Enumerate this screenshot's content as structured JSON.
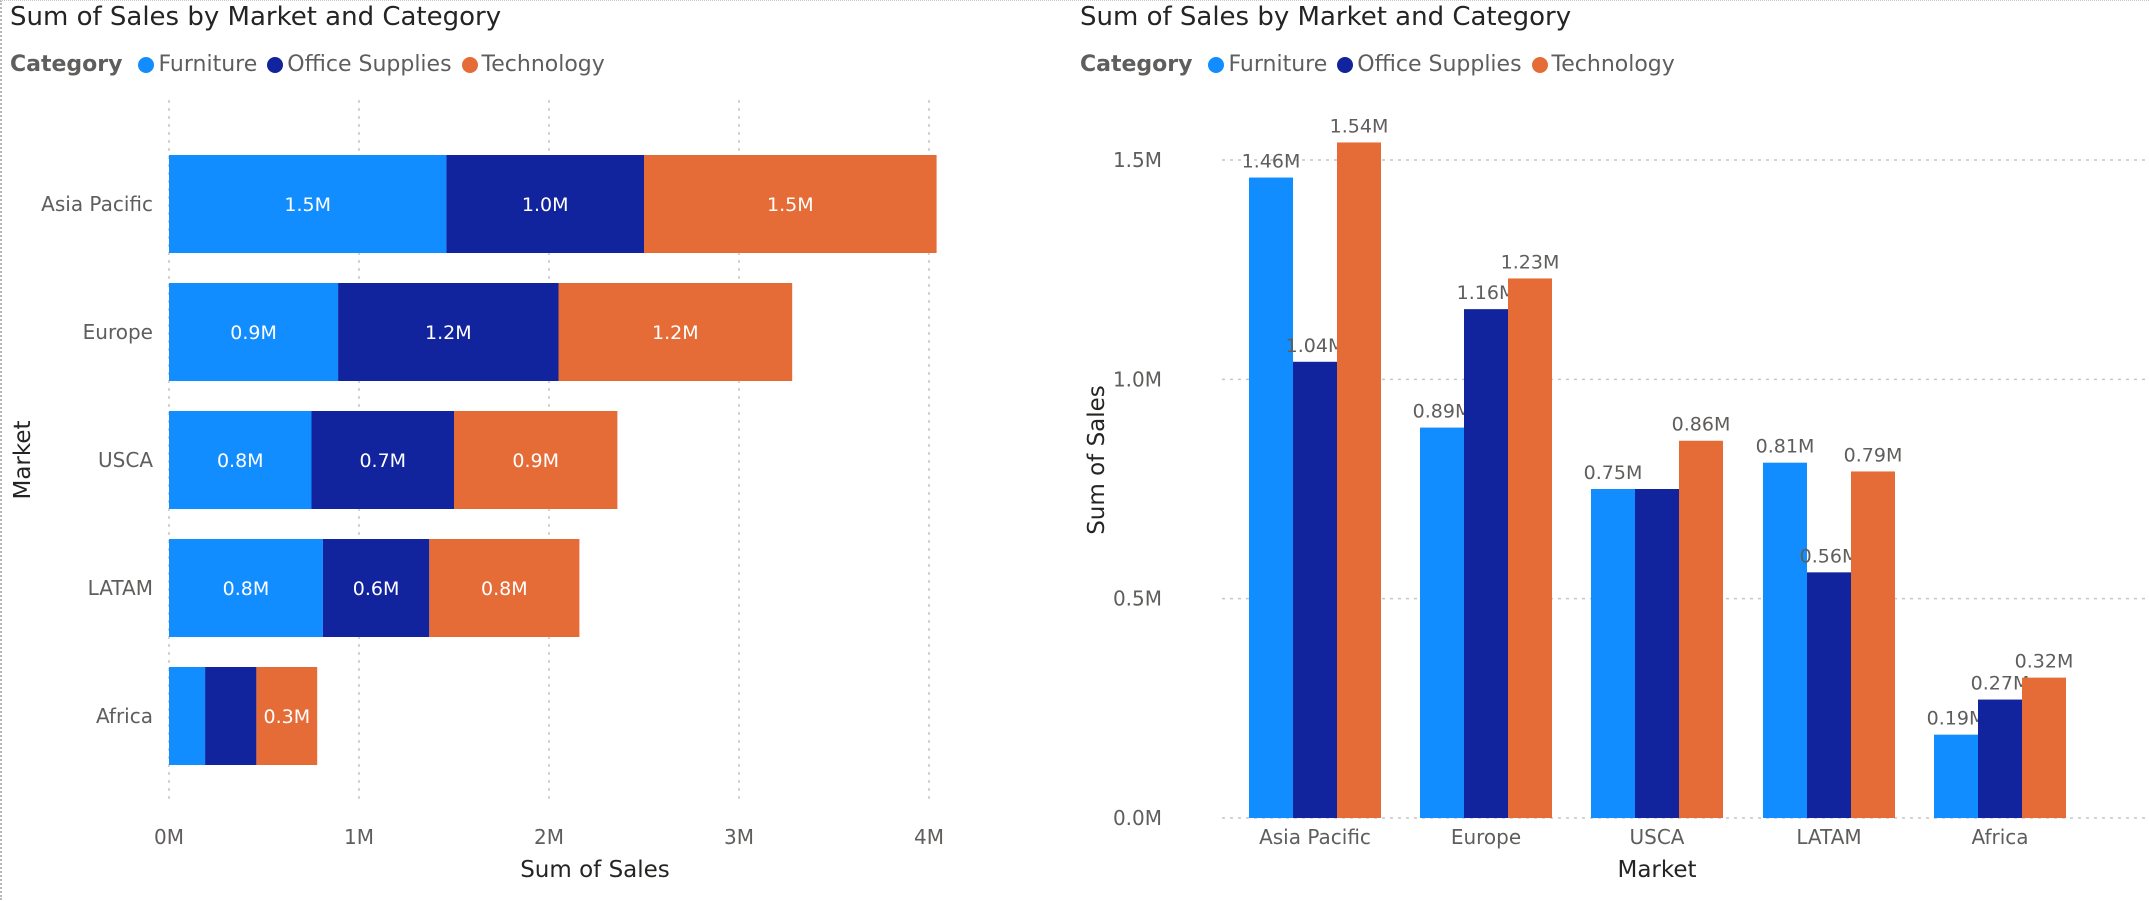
{
  "colors": {
    "furniture": "#118DFF",
    "office_supplies": "#12239E",
    "technology": "#E66C37"
  },
  "legend": {
    "title": "Category",
    "items": [
      "Furniture",
      "Office Supplies",
      "Technology"
    ]
  },
  "chart_data": [
    {
      "type": "bar",
      "orientation": "horizontal",
      "stacked": true,
      "title": "Sum of Sales by Market and Category",
      "xlabel": "Sum of Sales",
      "ylabel": "Market",
      "categories": [
        "Asia Pacific",
        "Europe",
        "USCA",
        "LATAM",
        "Africa"
      ],
      "series": [
        {
          "name": "Furniture",
          "values": [
            1.46,
            0.89,
            0.75,
            0.81,
            0.19
          ],
          "labels": [
            "1.5M",
            "0.9M",
            "0.8M",
            "0.8M",
            ""
          ]
        },
        {
          "name": "Office Supplies",
          "values": [
            1.04,
            1.16,
            0.75,
            0.56,
            0.27
          ],
          "labels": [
            "1.0M",
            "1.2M",
            "0.7M",
            "0.6M",
            ""
          ]
        },
        {
          "name": "Technology",
          "values": [
            1.54,
            1.23,
            0.86,
            0.79,
            0.32
          ],
          "labels": [
            "1.5M",
            "1.2M",
            "0.9M",
            "0.8M",
            "0.3M"
          ]
        }
      ],
      "xlim": [
        0,
        4.0
      ],
      "xticks": [
        0,
        1,
        2,
        3,
        4
      ],
      "xtick_labels": [
        "0M",
        "1M",
        "2M",
        "3M",
        "4M"
      ],
      "grid": "vertical dotted",
      "legend_position": "top-left"
    },
    {
      "type": "bar",
      "orientation": "vertical",
      "stacked": false,
      "title": "Sum of Sales by Market and Category",
      "xlabel": "Market",
      "ylabel": "Sum of Sales",
      "categories": [
        "Asia Pacific",
        "Europe",
        "USCA",
        "LATAM",
        "Africa"
      ],
      "series": [
        {
          "name": "Furniture",
          "values": [
            1.46,
            0.89,
            0.75,
            0.81,
            0.19
          ],
          "labels": [
            "1.46M",
            "0.89M",
            "0.75M",
            "0.81M",
            "0.19M"
          ]
        },
        {
          "name": "Office Supplies",
          "values": [
            1.04,
            1.16,
            0.75,
            0.56,
            0.27
          ],
          "labels": [
            "1.04M",
            "1.16M",
            "",
            "0.56M",
            "0.27M"
          ]
        },
        {
          "name": "Technology",
          "values": [
            1.54,
            1.23,
            0.86,
            0.79,
            0.32
          ],
          "labels": [
            "1.54M",
            "1.23M",
            "0.86M",
            "0.79M",
            "0.32M"
          ]
        }
      ],
      "ylim": [
        0,
        1.5
      ],
      "yticks": [
        0,
        0.5,
        1.0,
        1.5
      ],
      "ytick_labels": [
        "0.0M",
        "0.5M",
        "1.0M",
        "1.5M"
      ],
      "grid": "horizontal dotted",
      "legend_position": "top-left"
    }
  ]
}
